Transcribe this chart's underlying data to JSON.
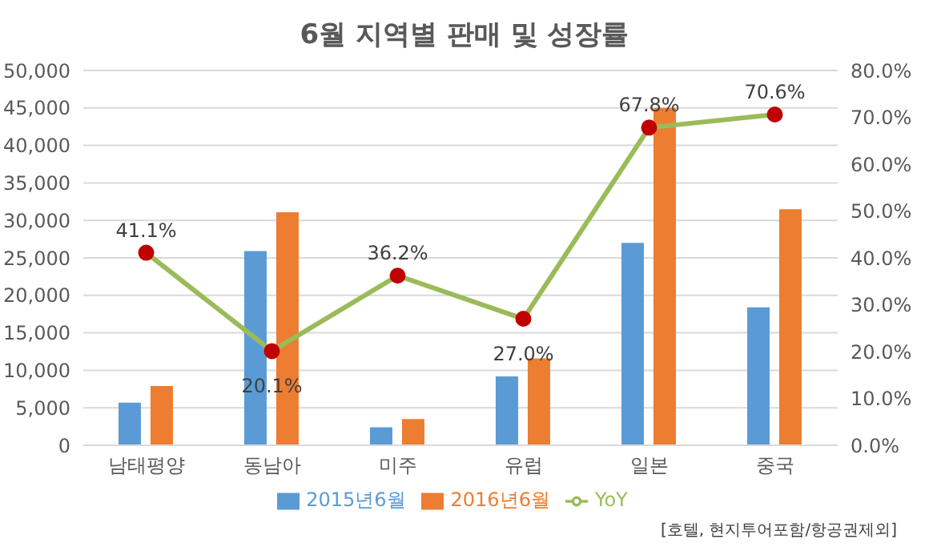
{
  "chart_data": {
    "type": "bar",
    "title": "6월 지역별 판매 및 성장률",
    "categories": [
      "남태평양",
      "동남아",
      "미주",
      "유럽",
      "일본",
      "중국"
    ],
    "series": [
      {
        "name": "2015년6월",
        "color": "#5b9bd5",
        "values": [
          5700,
          25900,
          2400,
          9200,
          27000,
          18400
        ]
      },
      {
        "name": "2016년6월",
        "color": "#ed7d31",
        "values": [
          7900,
          31100,
          3500,
          11600,
          45000,
          31500
        ]
      },
      {
        "name": "YoY",
        "type": "line",
        "axis": "y2",
        "color": "#9bbb59",
        "marker": "circle",
        "values": [
          41.1,
          20.1,
          36.2,
          27.0,
          67.8,
          70.6
        ],
        "value_labels": [
          "41.1%",
          "20.1%",
          "36.2%",
          "27.0%",
          "67.8%",
          "70.6%"
        ]
      }
    ],
    "ylim": [
      0,
      50000
    ],
    "yticks": [
      {
        "value": 0,
        "label": "0"
      },
      {
        "value": 5000,
        "label": "5,000"
      },
      {
        "value": 10000,
        "label": "10,000"
      },
      {
        "value": 15000,
        "label": "15,000"
      },
      {
        "value": 20000,
        "label": "20,000"
      },
      {
        "value": 25000,
        "label": "25,000"
      },
      {
        "value": 30000,
        "label": "30,000"
      },
      {
        "value": 35000,
        "label": "35,000"
      },
      {
        "value": 40000,
        "label": "40,000"
      },
      {
        "value": 45000,
        "label": "45,000"
      },
      {
        "value": 50000,
        "label": "50,000"
      }
    ],
    "y2lim": [
      0,
      80
    ],
    "y2ticks": [
      {
        "value": 0,
        "label": "0.0%"
      },
      {
        "value": 10,
        "label": "10.0%"
      },
      {
        "value": 20,
        "label": "20.0%"
      },
      {
        "value": 30,
        "label": "30.0%"
      },
      {
        "value": 40,
        "label": "40.0%"
      },
      {
        "value": 50,
        "label": "50.0%"
      },
      {
        "value": 60,
        "label": "60.0%"
      },
      {
        "value": 70,
        "label": "70.0%"
      },
      {
        "value": 80,
        "label": "80.0%"
      }
    ],
    "grid": "y",
    "legend": "bottom",
    "annotations": [
      "[호텔, 현지투어포함/항공권제외]"
    ]
  }
}
